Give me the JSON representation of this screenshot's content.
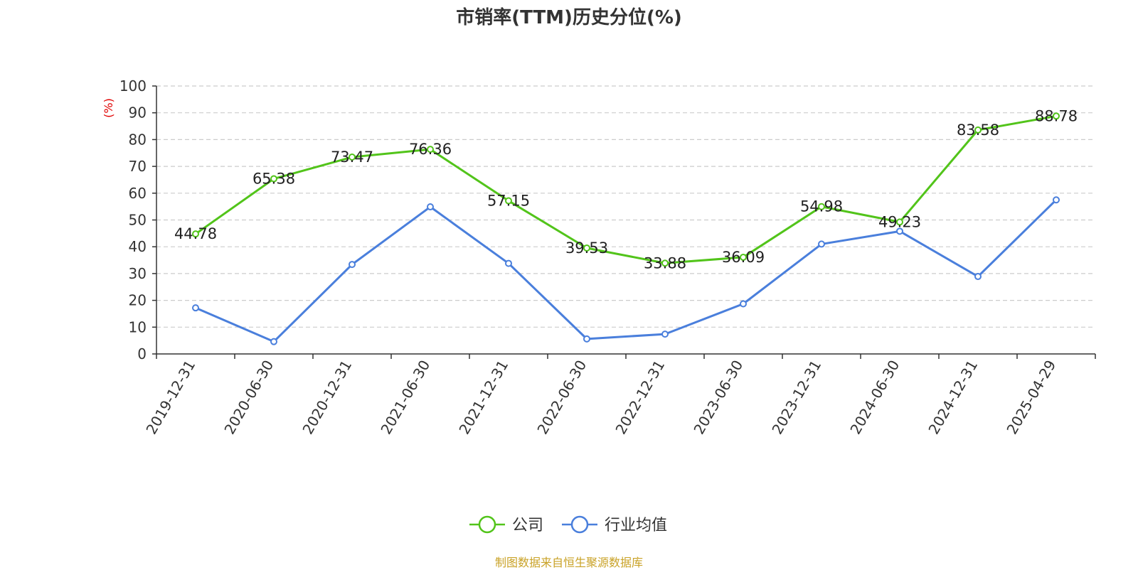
{
  "chart_data": {
    "type": "line",
    "title": "市销率(TTM)历史分位(%)",
    "ylabel": "(%)",
    "xlabel": "",
    "ylim": [
      0,
      100
    ],
    "yticks": [
      0,
      10,
      20,
      30,
      40,
      50,
      60,
      70,
      80,
      90,
      100
    ],
    "grid": true,
    "legend_position": "bottom-center",
    "categories": [
      "2019-12-31",
      "2020-06-30",
      "2020-12-31",
      "2021-06-30",
      "2021-12-31",
      "2022-06-30",
      "2022-12-31",
      "2023-06-30",
      "2023-12-31",
      "2024-06-30",
      "2024-12-31",
      "2025-04-29"
    ],
    "series": [
      {
        "name": "公司",
        "color": "#52c41a",
        "show_labels": true,
        "values": [
          44.78,
          65.38,
          73.47,
          76.36,
          57.15,
          39.53,
          33.88,
          36.09,
          54.98,
          49.23,
          83.58,
          88.78
        ]
      },
      {
        "name": "行业均值",
        "color": "#4a7fdc",
        "show_labels": false,
        "values": [
          17.2,
          4.6,
          33.4,
          54.9,
          33.8,
          5.6,
          7.4,
          18.7,
          41.0,
          45.8,
          28.9,
          57.5
        ]
      }
    ]
  },
  "source": "制图数据来自恒生聚源数据库"
}
